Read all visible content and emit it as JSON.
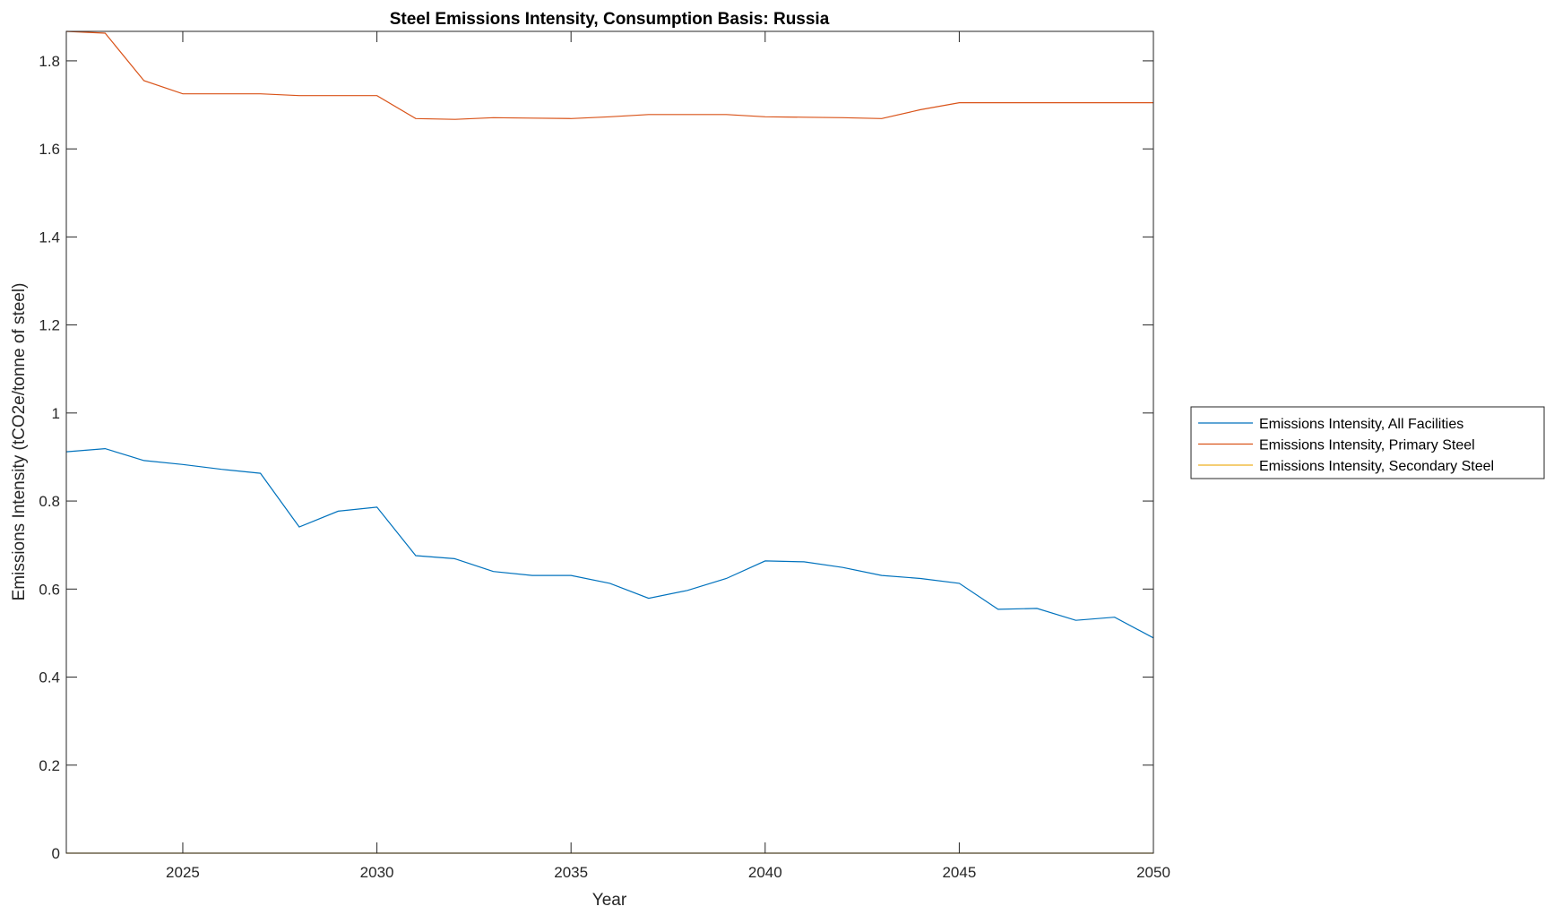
{
  "chart_data": {
    "type": "line",
    "title": "Steel Emissions Intensity, Consumption Basis: Russia",
    "xlabel": "Year",
    "ylabel": "Emissions Intensity (tCO2e/tonne of steel)",
    "xlim": [
      2022,
      2050
    ],
    "ylim": [
      0,
      1.867
    ],
    "xticks": [
      2025,
      2030,
      2035,
      2040,
      2045,
      2050
    ],
    "xtick_labels": [
      "2025",
      "2030",
      "2035",
      "2040",
      "2045",
      "2050"
    ],
    "yticks": [
      0,
      0.2,
      0.4,
      0.6,
      0.8,
      1,
      1.2,
      1.4,
      1.6,
      1.8
    ],
    "ytick_labels": [
      "0",
      "0.2",
      "0.4",
      "0.6",
      "0.8",
      "1",
      "1.2",
      "1.4",
      "1.6",
      "1.8"
    ],
    "grid": false,
    "legend_position": "outside-right",
    "x": [
      2022,
      2023,
      2024,
      2025,
      2026,
      2027,
      2028,
      2029,
      2030,
      2031,
      2032,
      2033,
      2034,
      2035,
      2036,
      2037,
      2038,
      2039,
      2040,
      2041,
      2042,
      2043,
      2044,
      2045,
      2046,
      2047,
      2048,
      2049,
      2050
    ],
    "series": [
      {
        "name": "Emissions Intensity, All Facilities",
        "color": "#0072BD",
        "values": [
          0.912,
          0.919,
          0.892,
          0.883,
          0.872,
          0.863,
          0.741,
          0.777,
          0.786,
          0.676,
          0.669,
          0.64,
          0.631,
          0.631,
          0.613,
          0.579,
          0.597,
          0.624,
          0.664,
          0.662,
          0.649,
          0.631,
          0.624,
          0.613,
          0.554,
          0.556,
          0.529,
          0.536,
          0.489
        ]
      },
      {
        "name": "Emissions Intensity, Primary Steel",
        "color": "#D95319",
        "values": [
          1.867,
          1.863,
          1.755,
          1.725,
          1.725,
          1.725,
          1.721,
          1.721,
          1.721,
          1.669,
          1.667,
          1.671,
          1.67,
          1.669,
          1.673,
          1.678,
          1.678,
          1.678,
          1.673,
          1.672,
          1.671,
          1.669,
          1.689,
          1.705,
          1.705,
          1.705,
          1.705,
          1.705,
          1.705
        ]
      },
      {
        "name": "Emissions Intensity, Secondary Steel",
        "color": "#EDB120",
        "values": [
          0,
          0,
          0,
          0,
          0,
          0,
          0,
          0,
          0,
          0,
          0,
          0,
          0,
          0,
          0,
          0,
          0,
          0,
          0,
          0,
          0,
          0,
          0,
          0,
          0,
          0,
          0,
          0,
          0
        ]
      }
    ]
  }
}
